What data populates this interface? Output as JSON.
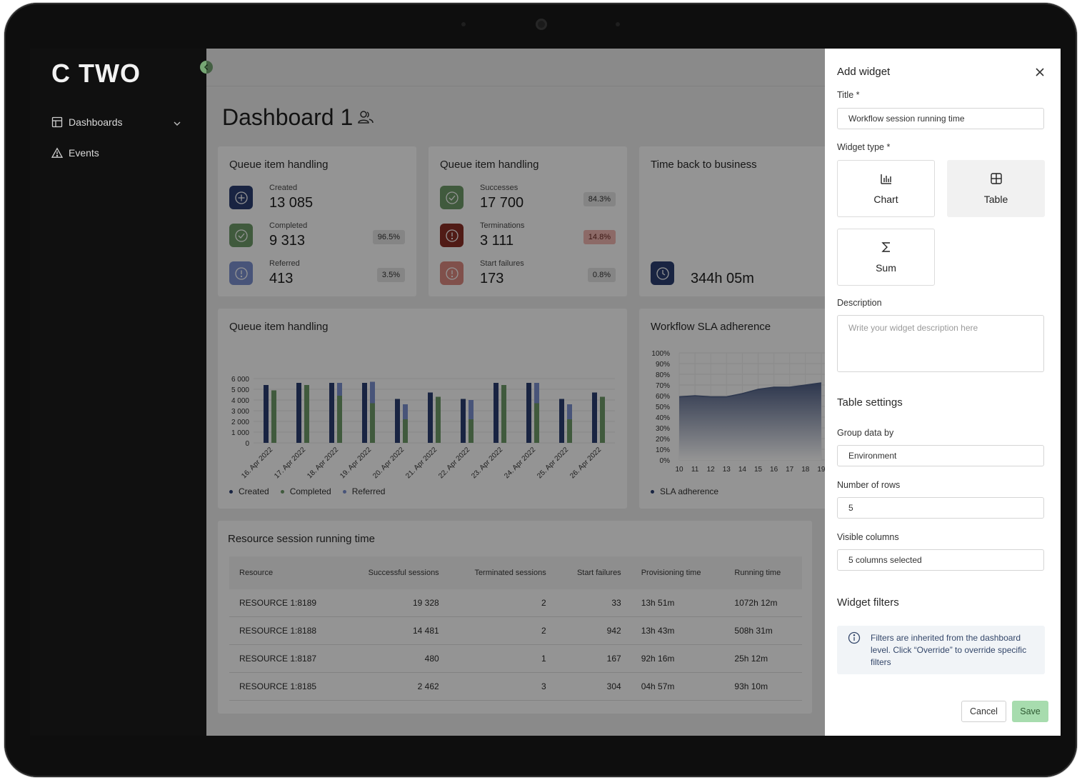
{
  "app": {
    "logo": "C TWO"
  },
  "sidebar": {
    "items": [
      {
        "label": "Dashboards",
        "icon": "dashboard-icon"
      },
      {
        "label": "Events",
        "icon": "warning-icon"
      }
    ]
  },
  "page": {
    "title": "Dashboard 1"
  },
  "cards": {
    "queue_metrics": {
      "title": "Queue item handling",
      "items": [
        {
          "label": "Created",
          "value": "13 085",
          "pct": ""
        },
        {
          "label": "Completed",
          "value": "9 313",
          "pct": "96.5%"
        },
        {
          "label": "Referred",
          "value": "413",
          "pct": "3.5%"
        }
      ]
    },
    "session_metrics": {
      "title": "Queue item handling",
      "items": [
        {
          "label": "Successes",
          "value": "17 700",
          "pct": "84.3%"
        },
        {
          "label": "Terminations",
          "value": "3 111",
          "pct": "14.8%"
        },
        {
          "label": "Start failures",
          "value": "173",
          "pct": "0.8%"
        }
      ]
    },
    "time_back": {
      "title": "Time back to business",
      "value": "344h 05m"
    },
    "queue_chart": {
      "title": "Queue item handling",
      "legend": [
        "Created",
        "Completed",
        "Referred"
      ]
    },
    "sla_chart": {
      "title": "Workflow SLA adherence",
      "legend": [
        "SLA adherence"
      ]
    },
    "resource_table": {
      "title": "Resource session running time",
      "columns": [
        "Resource",
        "Successful sessions",
        "Terminated sessions",
        "Start failures",
        "Provisioning time",
        "Running time"
      ],
      "rows": [
        [
          "RESOURCE 1:8189",
          "19 328",
          "2",
          "33",
          "13h 51m",
          "1072h 12m"
        ],
        [
          "RESOURCE 1:8188",
          "14 481",
          "2",
          "942",
          "13h 43m",
          "508h 31m"
        ],
        [
          "RESOURCE 1:8187",
          "480",
          "1",
          "167",
          "92h 16m",
          "25h 12m"
        ],
        [
          "RESOURCE 1:8185",
          "2 462",
          "3",
          "304",
          "04h 57m",
          "93h 10m"
        ]
      ]
    }
  },
  "chart_data": [
    {
      "type": "bar",
      "title": "Queue item handling",
      "categories": [
        "16. Apr 2022",
        "17. Apr 2022",
        "18. Apr 2022",
        "19. Apr 2022",
        "20. Apr 2022",
        "21. Apr 2022",
        "22. Apr 2022",
        "23. Apr 2022",
        "24. Apr 2022",
        "25. Apr 2022",
        "26. Apr 2022"
      ],
      "y_ticks": [
        "6 000",
        "5 000",
        "4 000",
        "3 000",
        "2 000",
        "1 000",
        "0"
      ],
      "ylim": [
        0,
        6000
      ],
      "stacked_second_bar": true,
      "series": [
        {
          "name": "Created",
          "color": "#2b3f73",
          "values": [
            5400,
            5600,
            5600,
            5600,
            4100,
            4700,
            4100,
            5600,
            5600,
            4100,
            4700
          ]
        },
        {
          "name": "Completed",
          "color": "#6e9c6a",
          "values": [
            4900,
            5400,
            4400,
            3700,
            2200,
            4300,
            2200,
            5400,
            3700,
            2200,
            4300
          ]
        },
        {
          "name": "Referred",
          "color": "#7d92d0",
          "values": [
            0,
            0,
            1200,
            2000,
            1400,
            0,
            1800,
            0,
            1900,
            1400,
            0
          ]
        }
      ]
    },
    {
      "type": "area",
      "title": "Workflow SLA adherence",
      "x": [
        "10",
        "11",
        "12",
        "13",
        "14",
        "15",
        "16",
        "17",
        "18",
        "19"
      ],
      "y_ticks": [
        "100%",
        "90%",
        "80%",
        "70%",
        "60%",
        "50%",
        "40%",
        "30%",
        "20%",
        "10%",
        "0%"
      ],
      "ylim": [
        0,
        100
      ],
      "series": [
        {
          "name": "SLA adherence",
          "color": "#4f5f87",
          "values": [
            59,
            60,
            59,
            59,
            62,
            66,
            68,
            68,
            70,
            72
          ]
        }
      ]
    }
  ],
  "panel": {
    "title": "Add widget",
    "title_label": "Title *",
    "title_value": "Workflow session running time",
    "type_label": "Widget type *",
    "types": [
      {
        "label": "Chart",
        "icon": "bar-chart-icon",
        "selected": false
      },
      {
        "label": "Table",
        "icon": "table-icon",
        "selected": true
      },
      {
        "label": "Sum",
        "icon": "sigma-icon",
        "selected": false
      }
    ],
    "description_label": "Description",
    "description_placeholder": "Write your widget description here",
    "table_settings_title": "Table settings",
    "group_label": "Group data by",
    "group_value": "Environment",
    "rows_label": "Number of rows",
    "rows_value": "5",
    "columns_label": "Visible columns",
    "columns_value": "5 columns selected",
    "filters_title": "Widget filters",
    "filters_info": "Filters are inherited from the dashboard level. Click “Override” to override specific filters",
    "cancel_label": "Cancel",
    "save_label": "Save",
    "colors": {
      "save_bg": "#a7dcae",
      "accent_green": "#76a674"
    }
  }
}
